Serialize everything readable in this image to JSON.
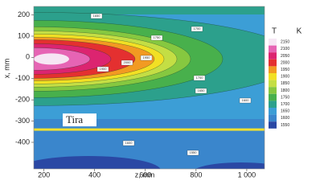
{
  "chart_data": {
    "type": "contour",
    "x_label": "z, mm",
    "y_label": "x, mm",
    "xlim": [
      160,
      1070
    ],
    "ylim": [
      -525,
      240
    ],
    "xticks": [
      200,
      400,
      600,
      800,
      {
        "value": 1000,
        "label": "1 000"
      }
    ],
    "yticks": [
      200,
      100,
      0,
      -100,
      -200,
      -300,
      -400
    ],
    "colorbar": {
      "title": "T",
      "unit": "K",
      "levels": [
        2150,
        2100,
        2050,
        2000,
        1950,
        1900,
        1850,
        1800,
        1750,
        1700,
        1650,
        1600,
        1550
      ],
      "colors": [
        "#f6e6f4",
        "#e664b4",
        "#dc2470",
        "#e43030",
        "#f29a22",
        "#f2e024",
        "#c4de44",
        "#86c840",
        "#48b04c",
        "#2ca08c",
        "#3c9ed6",
        "#3a86cc",
        "#2a48a4"
      ]
    },
    "contour_labels": [
      1650,
      1700,
      1750,
      2000,
      1950,
      1900,
      1700,
      1650,
      1600,
      1600,
      1550
    ],
    "annotation": {
      "text": "Tira",
      "y": -340,
      "color": "#f0e030"
    }
  }
}
